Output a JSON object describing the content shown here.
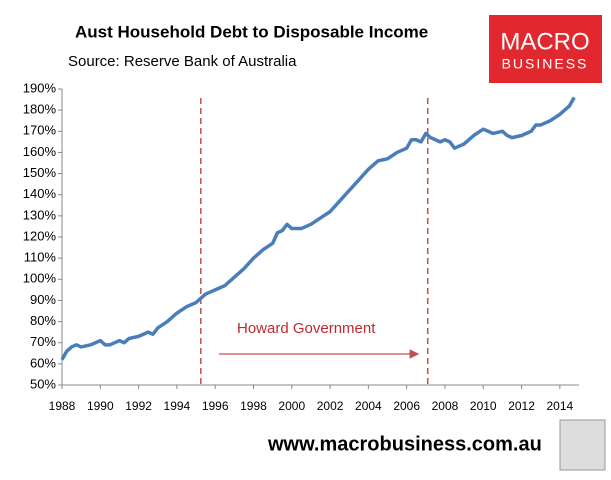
{
  "chart_data": {
    "type": "line",
    "title": "Aust Household Debt to Disposable Income",
    "subtitle": "Source: Reserve Bank of Australia",
    "logo": [
      "MACRO",
      "BUSINESS"
    ],
    "footer": "www.macrobusiness.com.au",
    "annotation": "Howard Government",
    "vlines": [
      1995.25,
      2007.1
    ],
    "x": [
      1988,
      1988.25,
      1988.5,
      1988.75,
      1989,
      1989.5,
      1990,
      1990.25,
      1990.5,
      1991,
      1991.25,
      1991.5,
      1992,
      1992.5,
      1992.75,
      1993,
      1993.5,
      1994,
      1994.5,
      1995,
      1995.25,
      1995.5,
      1996,
      1996.5,
      1997,
      1997.5,
      1998,
      1998.5,
      1999,
      1999.25,
      1999.5,
      1999.75,
      2000,
      2000.5,
      2001,
      2001.5,
      2002,
      2002.5,
      2003,
      2003.5,
      2004,
      2004.5,
      2005,
      2005.5,
      2006,
      2006.25,
      2006.5,
      2006.75,
      2007,
      2007.25,
      2007.5,
      2007.75,
      2008,
      2008.25,
      2008.5,
      2009,
      2009.5,
      2010,
      2010.25,
      2010.5,
      2011,
      2011.25,
      2011.5,
      2012,
      2012.5,
      2012.75,
      2013,
      2013.5,
      2014,
      2014.5,
      2014.75
    ],
    "series": [
      {
        "color": "#4a7ebb",
        "values": [
          62,
          66,
          68,
          69,
          68,
          69,
          71,
          69,
          69,
          71,
          70,
          72,
          73,
          75,
          74,
          77,
          80,
          84,
          87,
          89,
          91,
          93,
          95,
          97,
          101,
          105,
          110,
          114,
          117,
          122,
          123,
          126,
          124,
          124,
          126,
          129,
          132,
          137,
          142,
          147,
          152,
          156,
          157,
          160,
          162,
          166,
          166,
          165,
          169,
          167,
          166,
          165,
          166,
          165,
          162,
          164,
          168,
          171,
          170,
          169,
          170,
          168,
          167,
          168,
          170,
          173,
          173,
          175,
          178,
          182,
          186
        ]
      }
    ],
    "xlim": [
      1988,
      2015
    ],
    "xticks": [
      1988,
      1990,
      1992,
      1994,
      1996,
      1998,
      2000,
      2002,
      2004,
      2006,
      2008,
      2010,
      2012,
      2014
    ],
    "ylim": [
      50,
      190
    ],
    "yticks": [
      {
        "value": 50,
        "label": "50%"
      },
      {
        "value": 60,
        "label": "60%"
      },
      {
        "value": 70,
        "label": "70%"
      },
      {
        "value": 80,
        "label": "80%"
      },
      {
        "value": 90,
        "label": "90%"
      },
      {
        "value": 100,
        "label": "100%"
      },
      {
        "value": 110,
        "label": "110%"
      },
      {
        "value": 120,
        "label": "120%"
      },
      {
        "value": 130,
        "label": "130%"
      },
      {
        "value": 140,
        "label": "140%"
      },
      {
        "value": 150,
        "label": "150%"
      },
      {
        "value": 160,
        "label": "160%"
      },
      {
        "value": 170,
        "label": "170%"
      },
      {
        "value": 180,
        "label": "180%"
      },
      {
        "value": 190,
        "label": "190%"
      }
    ]
  }
}
